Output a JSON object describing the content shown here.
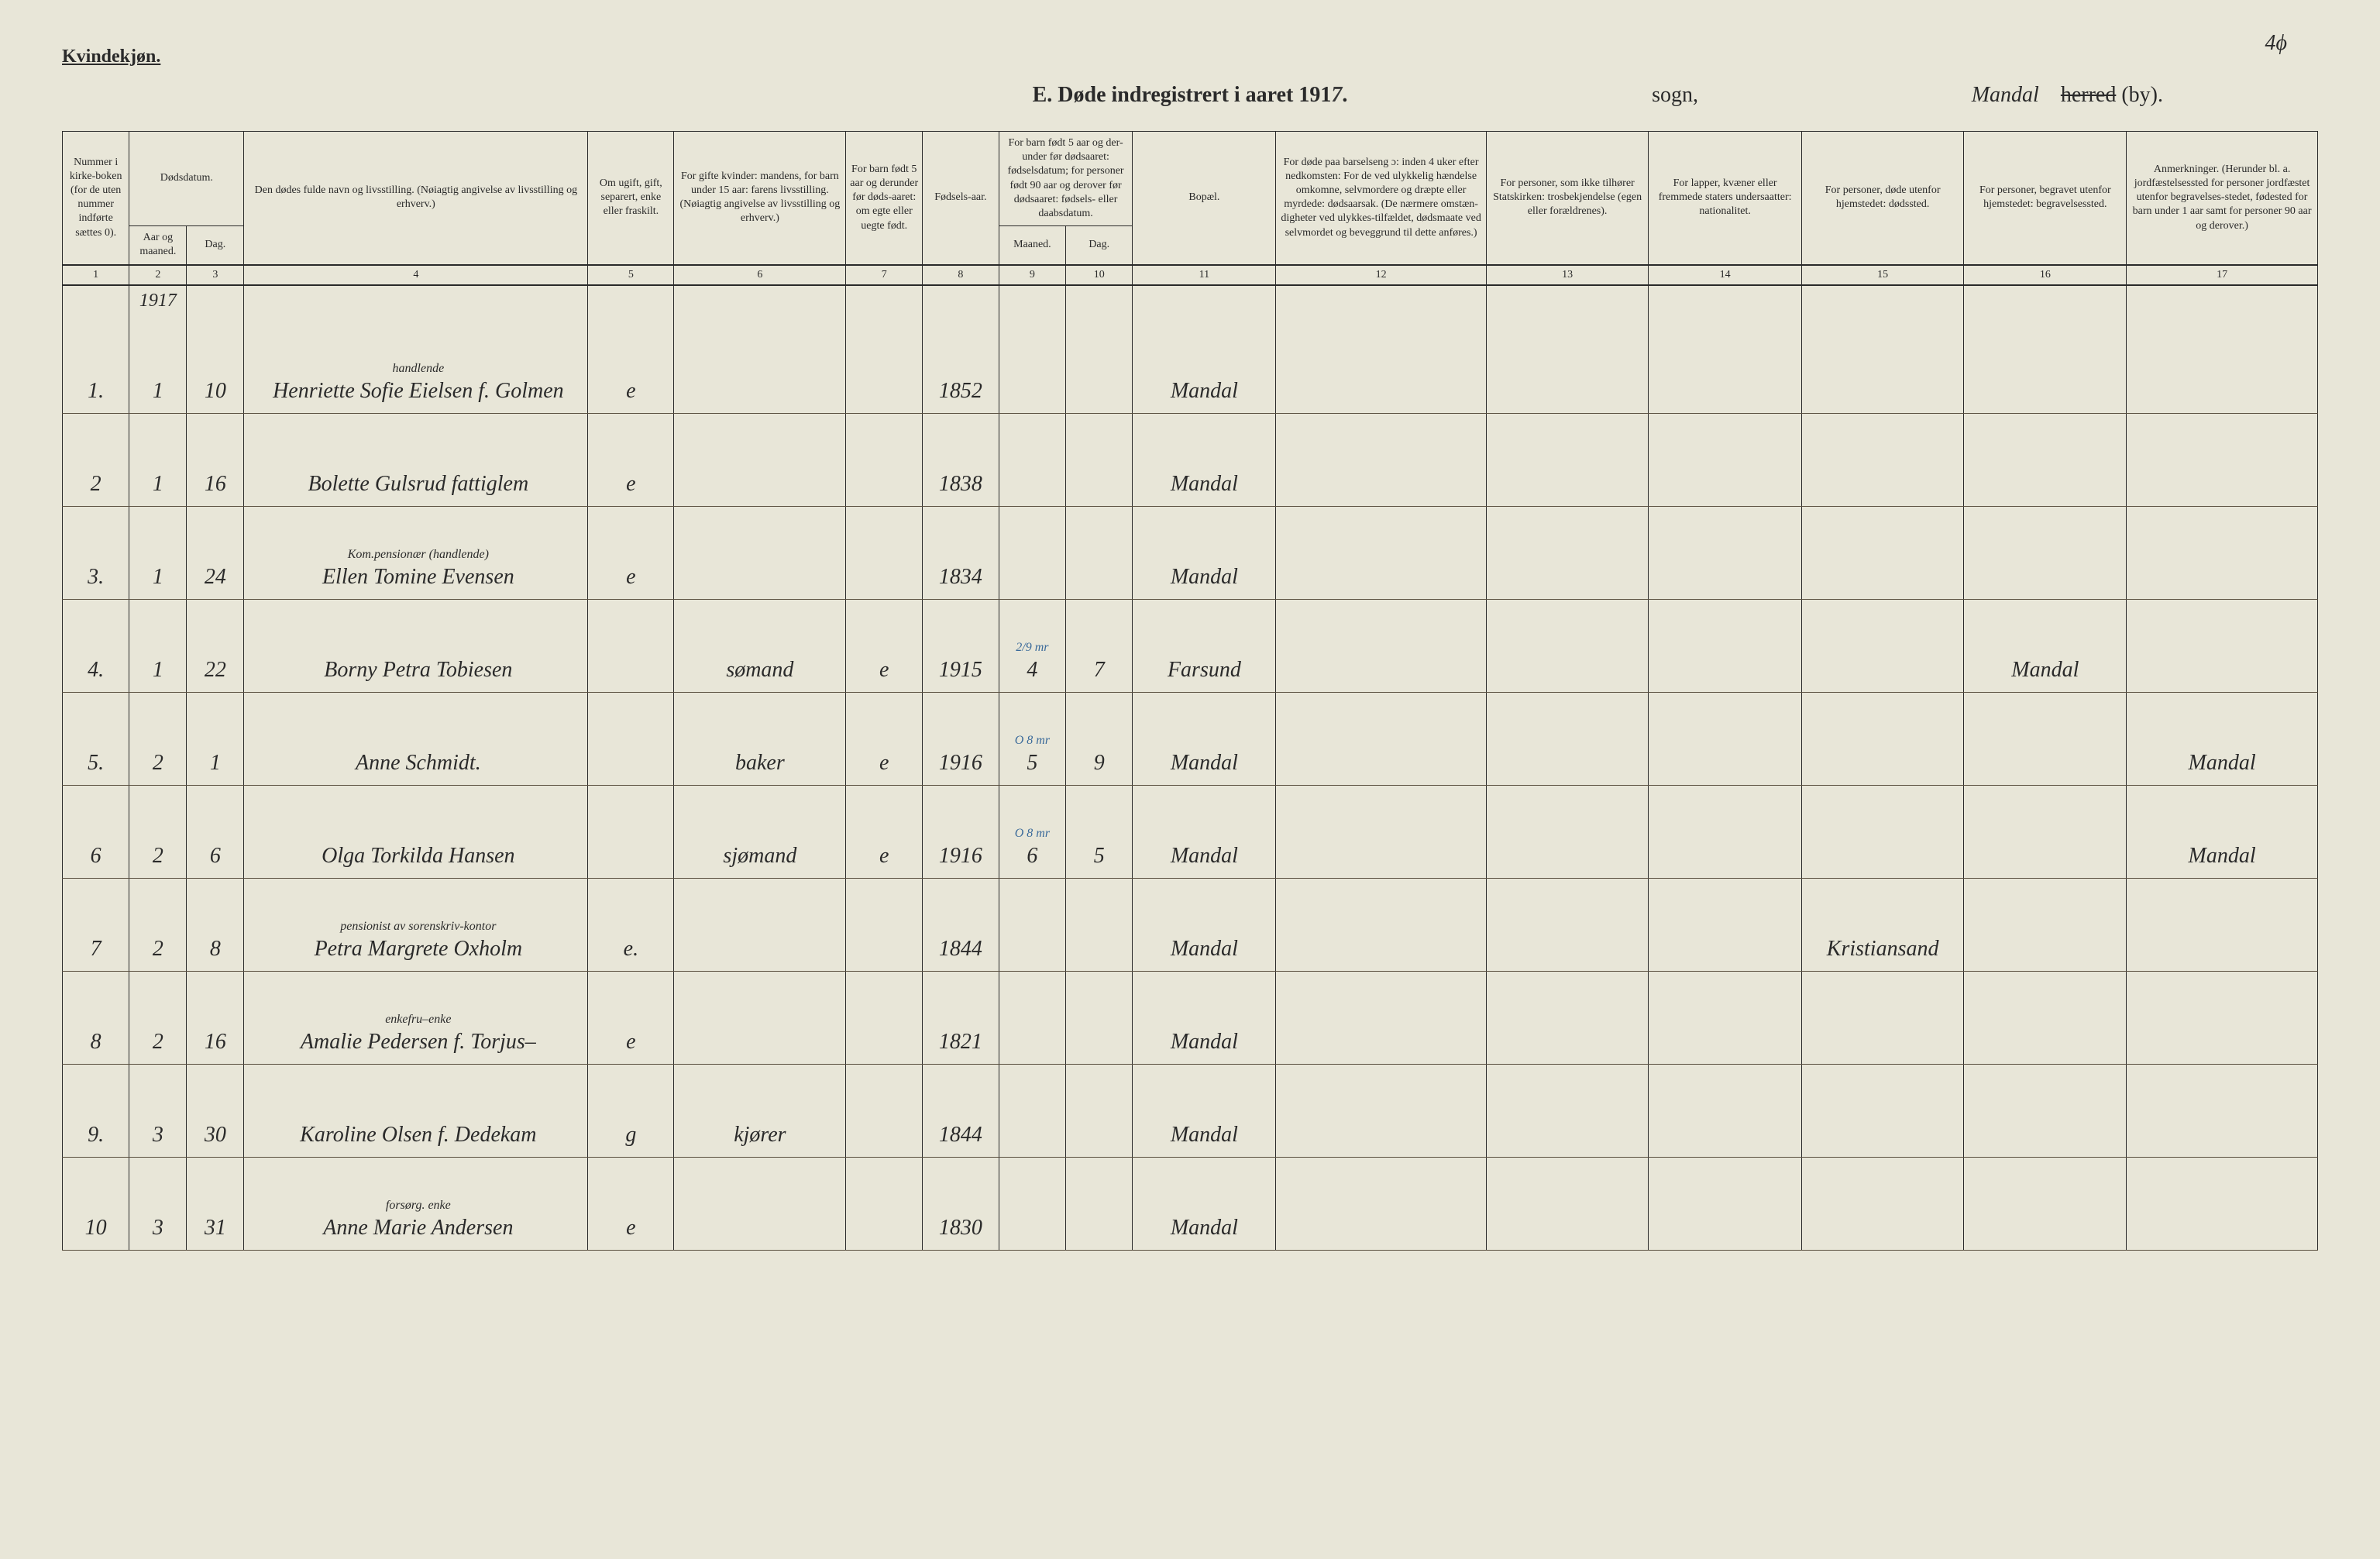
{
  "page_number": "4ϕ",
  "header": {
    "gender_label": "Kvindekjøn.",
    "title_prefix": "E.  Døde indregistrert i aaret 191",
    "year_suffix": "7",
    "title_period": ".",
    "sogn_label": "sogn,",
    "parish_handwritten": "Mandal",
    "herred_struck": "herred",
    "herred_by": " (by)."
  },
  "columns": {
    "c1": "Nummer i kirke-boken (for de uten nummer indførte sættes 0).",
    "c2a": "Dødsdatum.",
    "c2": "Aar og maaned.",
    "c3": "Dag.",
    "c4": "Den dødes fulde navn og livsstilling. (Nøiagtig angivelse av livsstilling og erhverv.)",
    "c5": "Om ugift, gift, separert, enke eller fraskilt.",
    "c6": "For gifte kvinder: mandens, for barn under 15 aar: farens livsstilling. (Nøiagtig angivelse av livsstilling og erhverv.)",
    "c7": "For barn født 5 aar og derunder før døds-aaret: om egte eller uegte født.",
    "c8": "Fødsels-aar.",
    "c9_10a": "For barn født 5 aar og der-under før dødsaaret: fødselsdatum; for personer født 90 aar og derover før dødsaaret: fødsels- eller daabsdatum.",
    "c9": "Maaned.",
    "c10": "Dag.",
    "c11": "Bopæl.",
    "c12": "For døde paa barselseng ɔ: inden 4 uker efter nedkomsten: For de ved ulykkelig hændelse omkomne, selvmordere og dræpte eller myrdede: dødsaarsak. (De nærmere omstæn-digheter ved ulykkes-tilfældet, dødsmaate ved selvmordet og beveggrund til dette anføres.)",
    "c13": "For personer, som ikke tilhører Statskirken: trosbekjendelse (egen eller forældrenes).",
    "c14": "For lapper, kvæner eller fremmede staters undersaatter: nationalitet.",
    "c15": "For personer, døde utenfor hjemstedet: dødssted.",
    "c16": "For personer, begravet utenfor hjemstedet: begravelsessted.",
    "c17": "Anmerkninger. (Herunder bl. a. jordfæstelsessted for personer jordfæstet utenfor begravelses-stedet, fødested for barn under 1 aar samt for personer 90 aar og derover.)"
  },
  "colnums": [
    "1",
    "2",
    "3",
    "4",
    "5",
    "6",
    "7",
    "8",
    "9",
    "10",
    "11",
    "12",
    "13",
    "14",
    "15",
    "16",
    "17"
  ],
  "year_row": "1917",
  "rows": [
    {
      "num": "1.",
      "month": "1",
      "day": "10",
      "name_note": "handlende",
      "name": "Henriette Sofie Eielsen f. Golmen",
      "status": "e",
      "occupation": "",
      "legit": "",
      "birthyr": "1852",
      "bm": "",
      "bd": "",
      "residence": "Mandal",
      "cause": "",
      "faith": "",
      "nat": "",
      "deathplace": "",
      "burial": "",
      "remarks": ""
    },
    {
      "num": "2",
      "month": "1",
      "day": "16",
      "name_note": "",
      "name": "Bolette Gulsrud  fattiglem",
      "status": "e",
      "occupation": "",
      "legit": "",
      "birthyr": "1838",
      "bm": "",
      "bd": "",
      "residence": "Mandal",
      "cause": "",
      "faith": "",
      "nat": "",
      "deathplace": "",
      "burial": "",
      "remarks": ""
    },
    {
      "num": "3.",
      "month": "1",
      "day": "24",
      "name_note": "Kom.pensionær (handlende)",
      "name": "Ellen Tomine Evensen",
      "status": "e",
      "occupation": "",
      "legit": "",
      "birthyr": "1834",
      "bm": "",
      "bd": "",
      "residence": "Mandal",
      "cause": "",
      "faith": "",
      "nat": "",
      "deathplace": "",
      "burial": "",
      "remarks": ""
    },
    {
      "num": "4.",
      "month": "1",
      "day": "22",
      "name_note": "",
      "name": "Borny Petra Tobiesen",
      "status": "",
      "occupation": "sømand",
      "legit": "e",
      "birthyr": "1915",
      "bm": "4",
      "bd": "7",
      "blue": "2/9 mr",
      "residence": "Farsund",
      "cause": "",
      "faith": "",
      "nat": "",
      "deathplace": "",
      "burial": "Mandal",
      "remarks": ""
    },
    {
      "num": "5.",
      "month": "2",
      "day": "1",
      "name_note": "",
      "name": "Anne Schmidt.",
      "status": "",
      "occupation": "baker",
      "legit": "e",
      "birthyr": "1916",
      "bm": "5",
      "bd": "9",
      "blue": "O 8 mr",
      "residence": "Mandal",
      "cause": "",
      "faith": "",
      "nat": "",
      "deathplace": "",
      "burial": "",
      "remarks": "Mandal"
    },
    {
      "num": "6",
      "month": "2",
      "day": "6",
      "name_note": "",
      "name": "Olga Torkilda Hansen",
      "status": "",
      "occupation": "sjømand",
      "legit": "e",
      "birthyr": "1916",
      "bm": "6",
      "bd": "5",
      "blue": "O 8 mr",
      "residence": "Mandal",
      "cause": "",
      "faith": "",
      "nat": "",
      "deathplace": "",
      "burial": "",
      "remarks": "Mandal"
    },
    {
      "num": "7",
      "month": "2",
      "day": "8",
      "name_note": "pensionist av sorenskriv-kontor",
      "name": "Petra Margrete Oxholm",
      "status": "e.",
      "occupation": "",
      "legit": "",
      "birthyr": "1844",
      "bm": "",
      "bd": "",
      "residence": "Mandal",
      "cause": "",
      "faith": "",
      "nat": "",
      "deathplace": "Kristiansand",
      "burial": "",
      "remarks": ""
    },
    {
      "num": "8",
      "month": "2",
      "day": "16",
      "name_note": "enkefru–enke",
      "name": "Amalie Pedersen f. Torjus–",
      "status": "e",
      "occupation": "",
      "legit": "",
      "birthyr": "1821",
      "bm": "",
      "bd": "",
      "residence": "Mandal",
      "cause": "",
      "faith": "",
      "nat": "",
      "deathplace": "",
      "burial": "",
      "remarks": ""
    },
    {
      "num": "9.",
      "month": "3",
      "day": "30",
      "name_note": "",
      "name": "Karoline Olsen f. Dedekam",
      "status": "g",
      "occupation": "kjører",
      "legit": "",
      "birthyr": "1844",
      "bm": "",
      "bd": "",
      "residence": "Mandal",
      "cause": "",
      "faith": "",
      "nat": "",
      "deathplace": "",
      "burial": "",
      "remarks": ""
    },
    {
      "num": "10",
      "month": "3",
      "day": "31",
      "name_note": "forsørg. enke",
      "name": "Anne Marie Andersen",
      "status": "e",
      "occupation": "",
      "legit": "",
      "birthyr": "1830",
      "bm": "",
      "bd": "",
      "residence": "Mandal",
      "cause": "",
      "faith": "",
      "nat": "",
      "deathplace": "",
      "burial": "",
      "remarks": ""
    }
  ]
}
